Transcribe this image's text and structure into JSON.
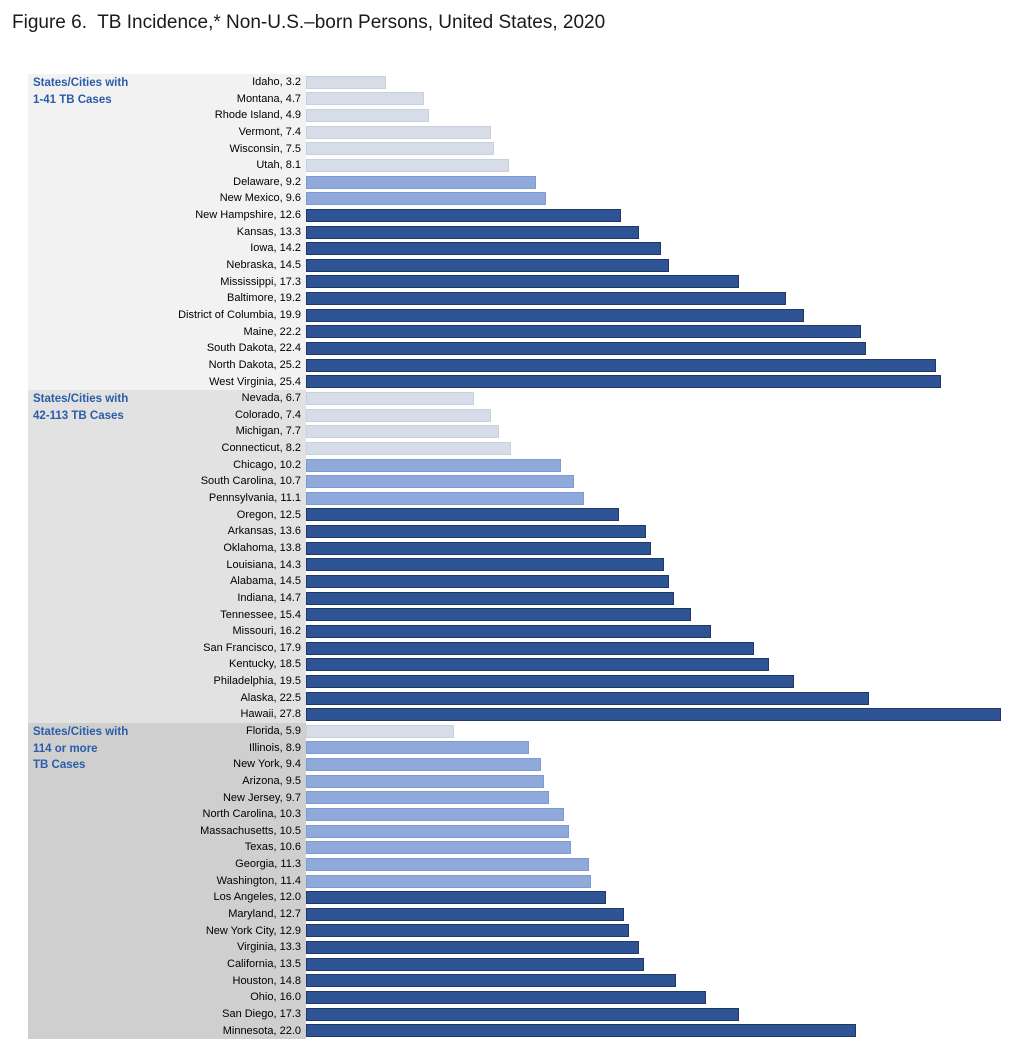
{
  "title": "Figure 6.  TB Incidence,* Non-U.S.–born Persons, United States, 2020",
  "colors": {
    "bar_dark": "#2e5495",
    "bar_medium": "#8fa9db",
    "bar_light": "#d7dde8",
    "band_group1": "#f2f2f2",
    "band_group2": "#e2e2e2",
    "band_group3": "#cfcfcf",
    "group_header_text": "#2a5ca8",
    "title_text": "#1a1a1a"
  },
  "chart_data": {
    "type": "bar",
    "orientation": "horizontal",
    "title": "Figure 6.  TB Incidence,* Non-U.S.–born Persons, United States, 2020",
    "xlabel": "",
    "ylabel": "",
    "xlim": [
      0,
      28
    ],
    "grid": false,
    "legend": false,
    "data_label_format": "Name, value (1 decimal)",
    "shade_colors": {
      "light": "#d7dde8",
      "medium": "#8fa9db",
      "dark": "#2e5495"
    },
    "groups": [
      {
        "label_lines": [
          "States/Cities with",
          "1-41 TB Cases"
        ],
        "items": [
          {
            "name": "Idaho",
            "value": 3.2,
            "shade": "light"
          },
          {
            "name": "Montana",
            "value": 4.7,
            "shade": "light"
          },
          {
            "name": "Rhode Island",
            "value": 4.9,
            "shade": "light"
          },
          {
            "name": "Vermont",
            "value": 7.4,
            "shade": "light"
          },
          {
            "name": "Wisconsin",
            "value": 7.5,
            "shade": "light"
          },
          {
            "name": "Utah",
            "value": 8.1,
            "shade": "light"
          },
          {
            "name": "Delaware",
            "value": 9.2,
            "shade": "medium"
          },
          {
            "name": "New Mexico",
            "value": 9.6,
            "shade": "medium"
          },
          {
            "name": "New Hampshire",
            "value": 12.6,
            "shade": "dark"
          },
          {
            "name": "Kansas",
            "value": 13.3,
            "shade": "dark"
          },
          {
            "name": "Iowa",
            "value": 14.2,
            "shade": "dark"
          },
          {
            "name": "Nebraska",
            "value": 14.5,
            "shade": "dark"
          },
          {
            "name": "Mississippi",
            "value": 17.3,
            "shade": "dark"
          },
          {
            "name": "Baltimore",
            "value": 19.2,
            "shade": "dark"
          },
          {
            "name": "District of Columbia",
            "value": 19.9,
            "shade": "dark"
          },
          {
            "name": "Maine",
            "value": 22.2,
            "shade": "dark"
          },
          {
            "name": "South Dakota",
            "value": 22.4,
            "shade": "dark"
          },
          {
            "name": "North Dakota",
            "value": 25.2,
            "shade": "dark"
          },
          {
            "name": "West Virginia",
            "value": 25.4,
            "shade": "dark"
          }
        ]
      },
      {
        "label_lines": [
          "States/Cities with",
          "42-113 TB Cases"
        ],
        "items": [
          {
            "name": "Nevada",
            "value": 6.7,
            "shade": "light"
          },
          {
            "name": "Colorado",
            "value": 7.4,
            "shade": "light"
          },
          {
            "name": "Michigan",
            "value": 7.7,
            "shade": "light"
          },
          {
            "name": "Connecticut",
            "value": 8.2,
            "shade": "light"
          },
          {
            "name": "Chicago",
            "value": 10.2,
            "shade": "medium"
          },
          {
            "name": "South Carolina",
            "value": 10.7,
            "shade": "medium"
          },
          {
            "name": "Pennsylvania",
            "value": 11.1,
            "shade": "medium"
          },
          {
            "name": "Oregon",
            "value": 12.5,
            "shade": "dark"
          },
          {
            "name": "Arkansas",
            "value": 13.6,
            "shade": "dark"
          },
          {
            "name": "Oklahoma",
            "value": 13.8,
            "shade": "dark"
          },
          {
            "name": "Louisiana",
            "value": 14.3,
            "shade": "dark"
          },
          {
            "name": "Alabama",
            "value": 14.5,
            "shade": "dark"
          },
          {
            "name": "Indiana",
            "value": 14.7,
            "shade": "dark"
          },
          {
            "name": "Tennessee",
            "value": 15.4,
            "shade": "dark"
          },
          {
            "name": "Missouri",
            "value": 16.2,
            "shade": "dark"
          },
          {
            "name": "San Francisco",
            "value": 17.9,
            "shade": "dark"
          },
          {
            "name": "Kentucky",
            "value": 18.5,
            "shade": "dark"
          },
          {
            "name": "Philadelphia",
            "value": 19.5,
            "shade": "dark"
          },
          {
            "name": "Alaska",
            "value": 22.5,
            "shade": "dark"
          },
          {
            "name": "Hawaii",
            "value": 27.8,
            "shade": "dark"
          }
        ]
      },
      {
        "label_lines": [
          "States/Cities with",
          "114 or more",
          "TB Cases"
        ],
        "items": [
          {
            "name": "Florida",
            "value": 5.9,
            "shade": "light"
          },
          {
            "name": "Illinois",
            "value": 8.9,
            "shade": "medium"
          },
          {
            "name": "New York",
            "value": 9.4,
            "shade": "medium"
          },
          {
            "name": "Arizona",
            "value": 9.5,
            "shade": "medium"
          },
          {
            "name": "New Jersey",
            "value": 9.7,
            "shade": "medium"
          },
          {
            "name": "North Carolina",
            "value": 10.3,
            "shade": "medium"
          },
          {
            "name": "Massachusetts",
            "value": 10.5,
            "shade": "medium"
          },
          {
            "name": "Texas",
            "value": 10.6,
            "shade": "medium"
          },
          {
            "name": "Georgia",
            "value": 11.3,
            "shade": "medium"
          },
          {
            "name": "Washington",
            "value": 11.4,
            "shade": "medium"
          },
          {
            "name": "Los Angeles",
            "value": 12.0,
            "shade": "dark"
          },
          {
            "name": "Maryland",
            "value": 12.7,
            "shade": "dark"
          },
          {
            "name": "New York City",
            "value": 12.9,
            "shade": "dark"
          },
          {
            "name": "Virginia",
            "value": 13.3,
            "shade": "dark"
          },
          {
            "name": "California",
            "value": 13.5,
            "shade": "dark"
          },
          {
            "name": "Houston",
            "value": 14.8,
            "shade": "dark"
          },
          {
            "name": "Ohio",
            "value": 16.0,
            "shade": "dark"
          },
          {
            "name": "San Diego",
            "value": 17.3,
            "shade": "dark"
          },
          {
            "name": "Minnesota",
            "value": 22.0,
            "shade": "dark"
          }
        ]
      }
    ]
  }
}
